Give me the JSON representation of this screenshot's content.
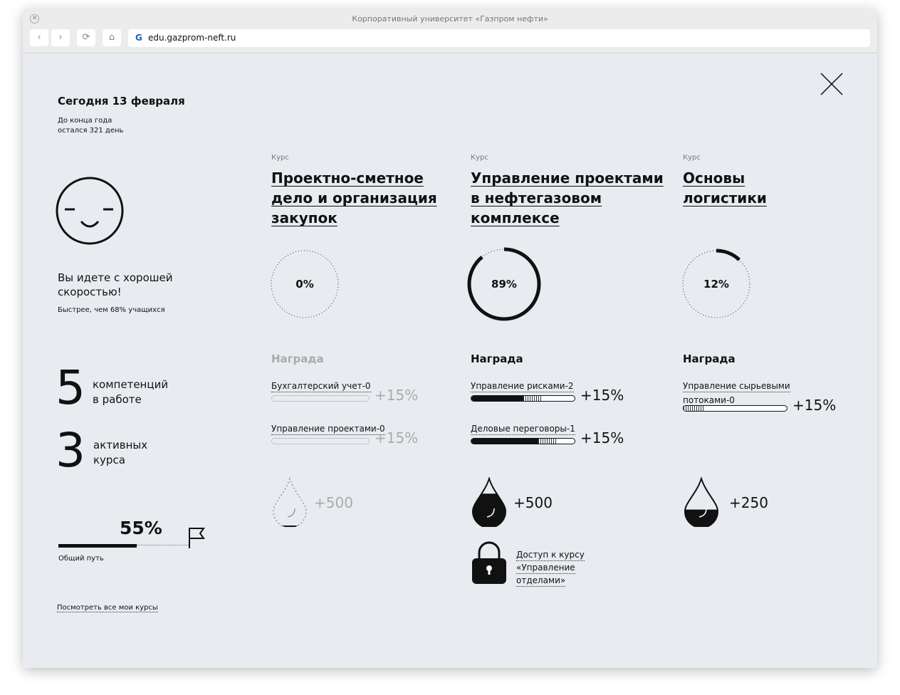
{
  "browser": {
    "title": "Корпоративный университет «Газпром нефти»",
    "url": "edu.gazprom-neft.ru"
  },
  "sidebar": {
    "date": "Сегодня 13 февраля",
    "days_left_1": "До конца года",
    "days_left_2": "остался 321 день",
    "mood_icon": "smiley-face-icon",
    "speed_1": "Вы идете с хорошей",
    "speed_2": "скоростью!",
    "faster": "Быстрее, чем 68% учащихся",
    "competencies": {
      "value": "5",
      "label_1": "компетенций",
      "label_2": "в работе"
    },
    "courses": {
      "value": "3",
      "label_1": "активных",
      "label_2": "курса"
    },
    "overall": {
      "percent": "55%",
      "progress": 55,
      "label": "Общий путь"
    },
    "all_courses_link": "Посмотреть все мои курсы"
  },
  "courses": [
    {
      "kind": "Курс",
      "title": [
        "Проектно-сметное",
        "дело и организация",
        "закупок"
      ],
      "progress": 0,
      "progress_label": "0%",
      "reward_title": "Награда",
      "active": false,
      "skills": [
        {
          "name": "Бухгалтерский учет-0",
          "fill": 0,
          "pending": 0,
          "bonus": "+15%"
        },
        {
          "name": "Управление проектами-0",
          "fill": 0,
          "pending": 0,
          "bonus": "+15%"
        }
      ],
      "drop": {
        "fill": 0,
        "value": "+500"
      }
    },
    {
      "kind": "Курс",
      "title": [
        "Управление проектами",
        "в нефтегазовом",
        "комплексе"
      ],
      "progress": 89,
      "progress_label": "89%",
      "reward_title": "Награда",
      "active": true,
      "skills": [
        {
          "name": "Управление рисками-2",
          "fill": 50,
          "pending": 18,
          "bonus": "+15%"
        },
        {
          "name": "Деловые переговоры-1",
          "fill": 65,
          "pending": 18,
          "bonus": "+15%"
        }
      ],
      "drop": {
        "fill": 70,
        "value": "+500"
      },
      "unlock": {
        "icon": "padlock-icon",
        "lines": [
          "Доступ к курсу",
          "«Управление",
          "отделами»"
        ]
      }
    },
    {
      "kind": "Курс",
      "title": [
        "Основы",
        "логистики"
      ],
      "progress": 12,
      "progress_label": "12%",
      "reward_title": "Награда",
      "active": true,
      "skills": [
        {
          "name": "Управление сырьевыми",
          "name2": "потоками-0",
          "fill": 0,
          "pending": 20,
          "bonus": "+15%"
        }
      ],
      "drop": {
        "fill": 35,
        "value": "+250"
      }
    }
  ]
}
